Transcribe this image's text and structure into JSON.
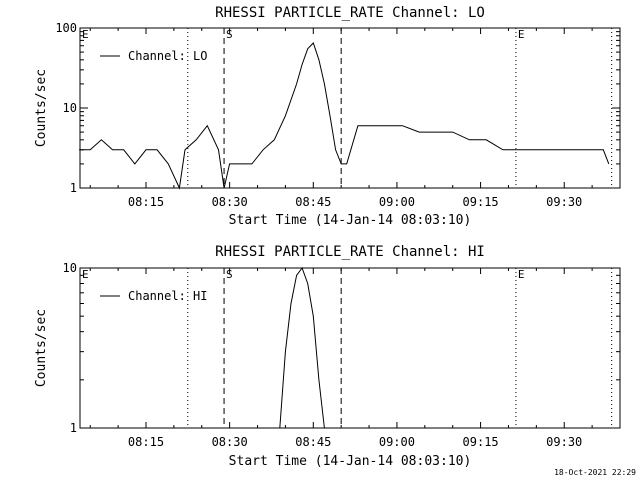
{
  "footer_timestamp": "18-Oct-2021 22:29",
  "colors": {
    "line": "#000000",
    "background": "#ffffff"
  },
  "chart_data": [
    {
      "type": "line",
      "title": "RHESSI PARTICLE_RATE Channel: LO",
      "xlabel": "Start Time (14-Jan-14 08:03:10)",
      "ylabel": "Counts/sec",
      "yscale": "log",
      "ylim": [
        1,
        100
      ],
      "xlim": [
        "08:03:10",
        "09:40:00"
      ],
      "x_ticks": [
        "08:15",
        "08:30",
        "08:45",
        "09:00",
        "09:15",
        "09:30"
      ],
      "y_ticks": [
        "1",
        "10",
        "100"
      ],
      "legend": {
        "position": "top-left",
        "entries": [
          "Channel: LO"
        ]
      },
      "markers": [
        {
          "label": "E",
          "time": "08:03:10",
          "style": "dotted"
        },
        {
          "label": "",
          "time": "08:22:30",
          "style": "dotted"
        },
        {
          "label": "S",
          "time": "08:29:00",
          "style": "dashed"
        },
        {
          "label": "",
          "time": "08:50:00",
          "style": "dashed"
        },
        {
          "label": "E",
          "time": "09:21:20",
          "style": "dotted"
        },
        {
          "label": "",
          "time": "09:38:30",
          "style": "dotted"
        }
      ],
      "series": [
        {
          "name": "Channel: LO",
          "x": [
            "08:03",
            "08:05",
            "08:07",
            "08:09",
            "08:11",
            "08:13",
            "08:15",
            "08:17",
            "08:19",
            "08:21",
            "08:22",
            "08:24",
            "08:26",
            "08:28",
            "08:29",
            "08:30",
            "08:32",
            "08:34",
            "08:36",
            "08:38",
            "08:40",
            "08:42",
            "08:43",
            "08:44",
            "08:45",
            "08:46",
            "08:47",
            "08:48",
            "08:49",
            "08:50",
            "08:51",
            "08:53",
            "08:55",
            "08:58",
            "09:01",
            "09:04",
            "09:07",
            "09:10",
            "09:13",
            "09:16",
            "09:19",
            "09:22",
            "09:25",
            "09:28",
            "09:31",
            "09:34",
            "09:37",
            "09:38"
          ],
          "y": [
            3,
            3,
            4,
            3,
            3,
            2,
            3,
            3,
            2,
            1,
            3,
            4,
            6,
            3,
            1,
            2,
            2,
            2,
            3,
            4,
            8,
            20,
            35,
            55,
            65,
            40,
            20,
            8,
            3,
            2,
            2,
            6,
            6,
            6,
            6,
            5,
            5,
            5,
            4,
            4,
            3,
            3,
            3,
            3,
            3,
            3,
            3,
            2
          ]
        }
      ]
    },
    {
      "type": "line",
      "title": "RHESSI PARTICLE_RATE Channel: HI",
      "xlabel": "Start Time (14-Jan-14 08:03:10)",
      "ylabel": "Counts/sec",
      "yscale": "log",
      "ylim": [
        1,
        10
      ],
      "xlim": [
        "08:03:10",
        "09:40:00"
      ],
      "x_ticks": [
        "08:15",
        "08:30",
        "08:45",
        "09:00",
        "09:15",
        "09:30"
      ],
      "y_ticks": [
        "1",
        "10"
      ],
      "legend": {
        "position": "top-left",
        "entries": [
          "Channel: HI"
        ]
      },
      "markers": [
        {
          "label": "E",
          "time": "08:03:10",
          "style": "dotted"
        },
        {
          "label": "",
          "time": "08:22:30",
          "style": "dotted"
        },
        {
          "label": "S",
          "time": "08:29:00",
          "style": "dashed"
        },
        {
          "label": "",
          "time": "08:50:00",
          "style": "dashed"
        },
        {
          "label": "E",
          "time": "09:21:20",
          "style": "dotted"
        },
        {
          "label": "",
          "time": "09:38:30",
          "style": "dotted"
        }
      ],
      "series": [
        {
          "name": "Channel: HI",
          "x": [
            "08:39",
            "08:40",
            "08:41",
            "08:42",
            "08:43",
            "08:44",
            "08:45",
            "08:46",
            "08:47"
          ],
          "y": [
            1,
            3,
            6,
            9,
            10,
            8,
            5,
            2,
            1
          ]
        }
      ]
    }
  ]
}
